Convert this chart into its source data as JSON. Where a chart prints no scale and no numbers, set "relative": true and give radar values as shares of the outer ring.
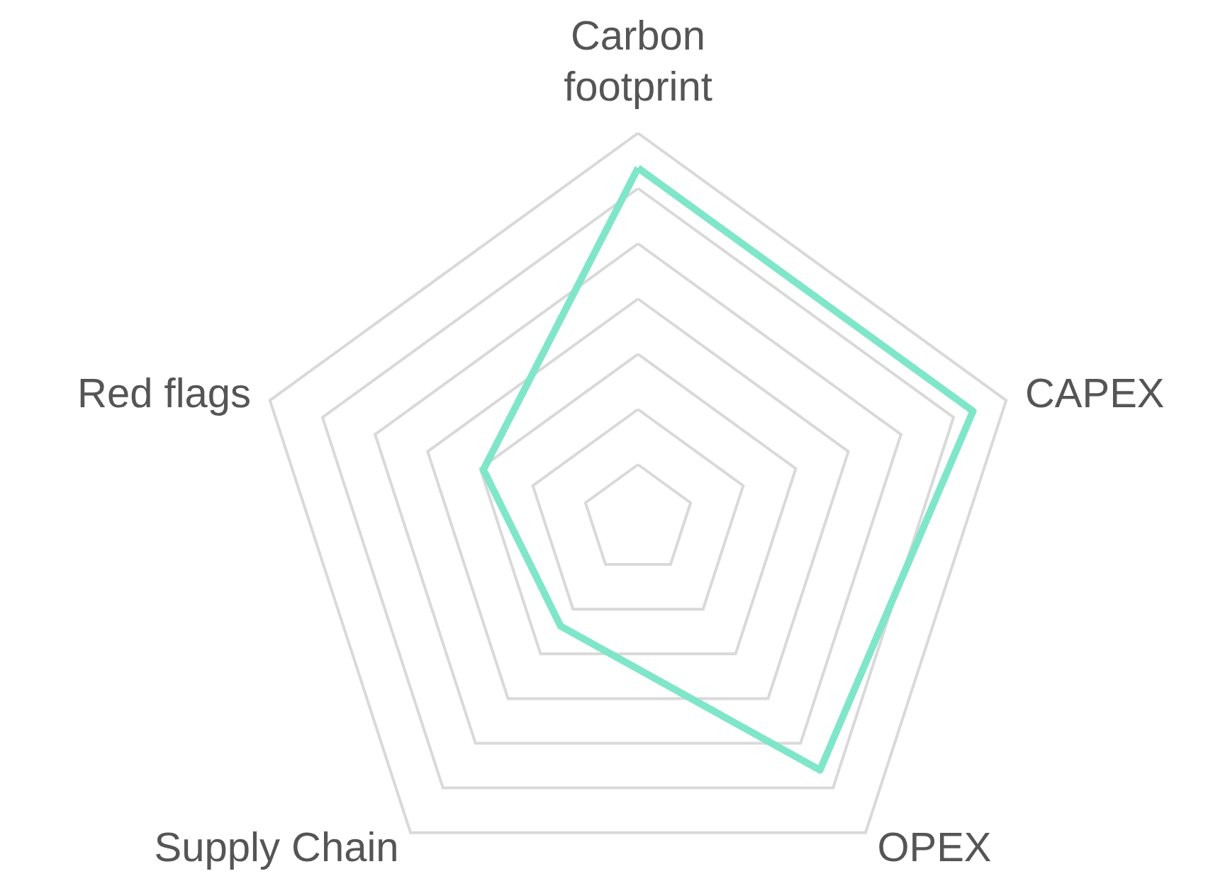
{
  "chart_data": {
    "type": "radar",
    "relative": true,
    "categories": [
      "Carbon footprint",
      "CAPEX",
      "OPEX",
      "Supply Chain",
      "Red flags"
    ],
    "series": [
      {
        "color": "#7fe6c9",
        "values": [
          0.91,
          0.91,
          0.8,
          0.34,
          0.42
        ]
      }
    ],
    "marker": "none",
    "grid": true
  }
}
